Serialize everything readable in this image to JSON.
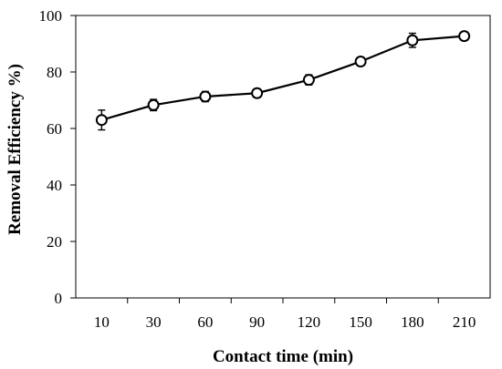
{
  "chart_data": {
    "type": "line",
    "title": "",
    "xlabel": "Contact time (min)",
    "ylabel": "Removal  Efficiency %)",
    "categories": [
      "10",
      "30",
      "60",
      "90",
      "120",
      "150",
      "180",
      "210"
    ],
    "series": [
      {
        "values": [
          63.0,
          68.3,
          71.3,
          72.5,
          77.2,
          83.7,
          91.2,
          92.7
        ],
        "errors": [
          3.5,
          2.0,
          1.8,
          1.5,
          1.8,
          1.5,
          2.5,
          1.5
        ],
        "color": "#000000",
        "marker": "circle"
      }
    ],
    "ylim": [
      0,
      100
    ],
    "yticks": [
      0,
      20,
      40,
      60,
      80,
      100
    ],
    "grid": false,
    "legend": "none"
  }
}
